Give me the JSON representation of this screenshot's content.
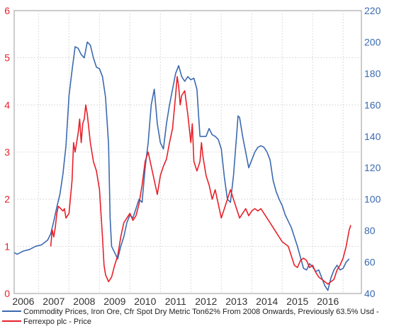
{
  "chart_data": {
    "type": "line",
    "grid": true,
    "legend_position": "bottom-left",
    "x_ticks": [
      "2006",
      "2007",
      "2008",
      "2009",
      "2010",
      "2011",
      "2012",
      "2013",
      "2014",
      "2015",
      "2016"
    ],
    "x_range": [
      2005.7,
      2017.1
    ],
    "left_axis": {
      "range": [
        0,
        6
      ],
      "ticks": [
        "0",
        "1",
        "2",
        "3",
        "4",
        "5",
        "6"
      ],
      "color": "#e8202a"
    },
    "right_axis": {
      "range": [
        40,
        220
      ],
      "ticks": [
        "40",
        "60",
        "80",
        "100",
        "120",
        "140",
        "160",
        "180",
        "200",
        "220"
      ],
      "color": "#3b6ab0"
    },
    "series": [
      {
        "name": "Commodity Prices, Iron Ore, Cfr Spot Dry Metric Ton62% From 2008 Onwards, Previously 63.5% Usd -",
        "color": "#3b6ab0",
        "axis": "right",
        "points": [
          [
            2005.7,
            66
          ],
          [
            2005.8,
            65
          ],
          [
            2005.9,
            66
          ],
          [
            2006.0,
            67
          ],
          [
            2006.2,
            68
          ],
          [
            2006.4,
            70
          ],
          [
            2006.6,
            71
          ],
          [
            2006.8,
            74
          ],
          [
            2006.9,
            78
          ],
          [
            2007.0,
            86
          ],
          [
            2007.1,
            95
          ],
          [
            2007.2,
            103
          ],
          [
            2007.3,
            116
          ],
          [
            2007.4,
            134
          ],
          [
            2007.5,
            166
          ],
          [
            2007.6,
            182
          ],
          [
            2007.7,
            197
          ],
          [
            2007.8,
            196
          ],
          [
            2007.9,
            192
          ],
          [
            2008.0,
            190
          ],
          [
            2008.1,
            200
          ],
          [
            2008.2,
            198
          ],
          [
            2008.3,
            190
          ],
          [
            2008.4,
            184
          ],
          [
            2008.5,
            183
          ],
          [
            2008.6,
            178
          ],
          [
            2008.7,
            165
          ],
          [
            2008.8,
            135
          ],
          [
            2008.85,
            88
          ],
          [
            2008.9,
            70
          ],
          [
            2009.0,
            66
          ],
          [
            2009.1,
            62
          ],
          [
            2009.2,
            70
          ],
          [
            2009.3,
            76
          ],
          [
            2009.4,
            85
          ],
          [
            2009.5,
            90
          ],
          [
            2009.6,
            88
          ],
          [
            2009.7,
            94
          ],
          [
            2009.8,
            100
          ],
          [
            2009.9,
            98
          ],
          [
            2010.0,
            120
          ],
          [
            2010.1,
            136
          ],
          [
            2010.2,
            160
          ],
          [
            2010.3,
            170
          ],
          [
            2010.4,
            148
          ],
          [
            2010.5,
            136
          ],
          [
            2010.6,
            132
          ],
          [
            2010.7,
            148
          ],
          [
            2010.8,
            160
          ],
          [
            2010.9,
            170
          ],
          [
            2011.0,
            180
          ],
          [
            2011.1,
            185
          ],
          [
            2011.2,
            178
          ],
          [
            2011.3,
            175
          ],
          [
            2011.4,
            178
          ],
          [
            2011.5,
            176
          ],
          [
            2011.6,
            177
          ],
          [
            2011.7,
            170
          ],
          [
            2011.75,
            155
          ],
          [
            2011.8,
            140
          ],
          [
            2011.9,
            140
          ],
          [
            2012.0,
            140
          ],
          [
            2012.1,
            145
          ],
          [
            2012.2,
            141
          ],
          [
            2012.3,
            140
          ],
          [
            2012.4,
            138
          ],
          [
            2012.5,
            132
          ],
          [
            2012.6,
            114
          ],
          [
            2012.7,
            100
          ],
          [
            2012.8,
            98
          ],
          [
            2012.9,
            115
          ],
          [
            2013.0,
            140
          ],
          [
            2013.05,
            153
          ],
          [
            2013.1,
            152
          ],
          [
            2013.2,
            140
          ],
          [
            2013.3,
            130
          ],
          [
            2013.4,
            120
          ],
          [
            2013.5,
            125
          ],
          [
            2013.6,
            130
          ],
          [
            2013.7,
            133
          ],
          [
            2013.8,
            134
          ],
          [
            2013.9,
            133
          ],
          [
            2014.0,
            130
          ],
          [
            2014.1,
            125
          ],
          [
            2014.2,
            112
          ],
          [
            2014.3,
            105
          ],
          [
            2014.4,
            100
          ],
          [
            2014.5,
            96
          ],
          [
            2014.6,
            90
          ],
          [
            2014.7,
            86
          ],
          [
            2014.8,
            82
          ],
          [
            2014.9,
            76
          ],
          [
            2015.0,
            70
          ],
          [
            2015.1,
            63
          ],
          [
            2015.2,
            56
          ],
          [
            2015.3,
            55
          ],
          [
            2015.4,
            59
          ],
          [
            2015.5,
            57
          ],
          [
            2015.6,
            54
          ],
          [
            2015.7,
            55
          ],
          [
            2015.8,
            50
          ],
          [
            2015.9,
            45
          ],
          [
            2016.0,
            42
          ],
          [
            2016.1,
            50
          ],
          [
            2016.2,
            55
          ],
          [
            2016.3,
            58
          ],
          [
            2016.4,
            55
          ],
          [
            2016.5,
            56
          ],
          [
            2016.6,
            60
          ],
          [
            2016.7,
            62
          ]
        ]
      },
      {
        "name": "Ferrexpo plc - Price",
        "color": "#e8202a",
        "axis": "left",
        "points": [
          [
            2006.9,
            1.0
          ],
          [
            2006.95,
            1.35
          ],
          [
            2007.0,
            1.2
          ],
          [
            2007.05,
            1.4
          ],
          [
            2007.1,
            1.7
          ],
          [
            2007.15,
            1.85
          ],
          [
            2007.2,
            1.82
          ],
          [
            2007.3,
            1.75
          ],
          [
            2007.35,
            1.8
          ],
          [
            2007.4,
            1.6
          ],
          [
            2007.5,
            1.7
          ],
          [
            2007.6,
            2.4
          ],
          [
            2007.65,
            3.2
          ],
          [
            2007.7,
            3.0
          ],
          [
            2007.8,
            3.4
          ],
          [
            2007.85,
            3.7
          ],
          [
            2007.9,
            3.2
          ],
          [
            2007.95,
            3.6
          ],
          [
            2008.0,
            3.7
          ],
          [
            2008.05,
            4.0
          ],
          [
            2008.1,
            3.8
          ],
          [
            2008.2,
            3.2
          ],
          [
            2008.3,
            2.8
          ],
          [
            2008.4,
            2.6
          ],
          [
            2008.5,
            2.2
          ],
          [
            2008.6,
            1.2
          ],
          [
            2008.65,
            0.6
          ],
          [
            2008.7,
            0.4
          ],
          [
            2008.8,
            0.25
          ],
          [
            2008.9,
            0.35
          ],
          [
            2009.0,
            0.6
          ],
          [
            2009.1,
            0.8
          ],
          [
            2009.2,
            1.2
          ],
          [
            2009.3,
            1.5
          ],
          [
            2009.4,
            1.6
          ],
          [
            2009.5,
            1.7
          ],
          [
            2009.6,
            1.55
          ],
          [
            2009.7,
            1.65
          ],
          [
            2009.8,
            1.9
          ],
          [
            2009.9,
            2.3
          ],
          [
            2010.0,
            2.8
          ],
          [
            2010.1,
            3.0
          ],
          [
            2010.2,
            2.7
          ],
          [
            2010.3,
            2.4
          ],
          [
            2010.4,
            2.1
          ],
          [
            2010.5,
            2.5
          ],
          [
            2010.6,
            2.7
          ],
          [
            2010.7,
            2.85
          ],
          [
            2010.8,
            3.2
          ],
          [
            2010.9,
            3.5
          ],
          [
            2011.0,
            4.2
          ],
          [
            2011.05,
            4.6
          ],
          [
            2011.1,
            4.4
          ],
          [
            2011.15,
            4.0
          ],
          [
            2011.2,
            4.2
          ],
          [
            2011.3,
            4.3
          ],
          [
            2011.4,
            3.8
          ],
          [
            2011.5,
            3.2
          ],
          [
            2011.55,
            3.6
          ],
          [
            2011.6,
            2.8
          ],
          [
            2011.7,
            2.6
          ],
          [
            2011.8,
            2.8
          ],
          [
            2011.85,
            3.2
          ],
          [
            2011.9,
            2.9
          ],
          [
            2012.0,
            2.5
          ],
          [
            2012.1,
            2.3
          ],
          [
            2012.2,
            2.0
          ],
          [
            2012.3,
            2.2
          ],
          [
            2012.4,
            1.9
          ],
          [
            2012.5,
            1.6
          ],
          [
            2012.6,
            1.8
          ],
          [
            2012.7,
            2.0
          ],
          [
            2012.8,
            2.2
          ],
          [
            2012.9,
            2.0
          ],
          [
            2013.0,
            1.8
          ],
          [
            2013.1,
            1.6
          ],
          [
            2013.2,
            1.7
          ],
          [
            2013.3,
            1.8
          ],
          [
            2013.4,
            1.65
          ],
          [
            2013.5,
            1.75
          ],
          [
            2013.6,
            1.8
          ],
          [
            2013.7,
            1.75
          ],
          [
            2013.8,
            1.8
          ],
          [
            2013.9,
            1.7
          ],
          [
            2014.0,
            1.6
          ],
          [
            2014.1,
            1.5
          ],
          [
            2014.2,
            1.4
          ],
          [
            2014.3,
            1.3
          ],
          [
            2014.4,
            1.2
          ],
          [
            2014.5,
            1.1
          ],
          [
            2014.6,
            1.05
          ],
          [
            2014.7,
            1.0
          ],
          [
            2014.8,
            0.8
          ],
          [
            2014.9,
            0.6
          ],
          [
            2015.0,
            0.55
          ],
          [
            2015.1,
            0.7
          ],
          [
            2015.2,
            0.75
          ],
          [
            2015.3,
            0.7
          ],
          [
            2015.4,
            0.55
          ],
          [
            2015.5,
            0.6
          ],
          [
            2015.6,
            0.45
          ],
          [
            2015.7,
            0.35
          ],
          [
            2015.8,
            0.3
          ],
          [
            2015.9,
            0.25
          ],
          [
            2016.0,
            0.2
          ],
          [
            2016.1,
            0.25
          ],
          [
            2016.2,
            0.3
          ],
          [
            2016.3,
            0.5
          ],
          [
            2016.4,
            0.6
          ],
          [
            2016.5,
            0.75
          ],
          [
            2016.6,
            1.0
          ],
          [
            2016.7,
            1.35
          ],
          [
            2016.75,
            1.45
          ]
        ]
      }
    ]
  }
}
